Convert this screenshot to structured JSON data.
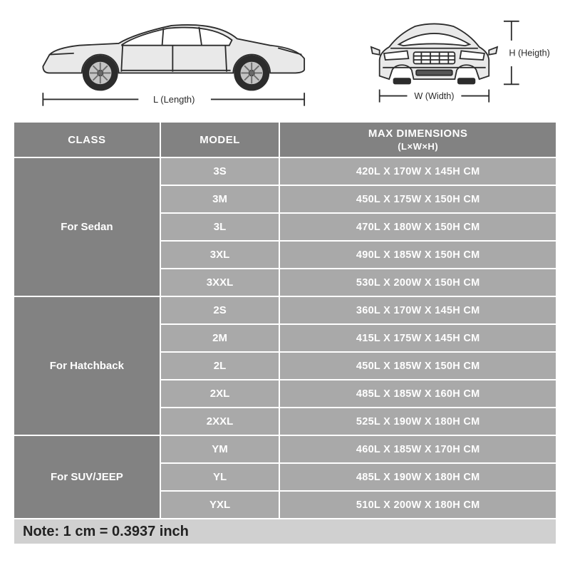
{
  "diagram": {
    "length_label": "L (Length)",
    "width_label": "W (Width)",
    "height_label": "H (Heigth)",
    "stroke_color": "#2c2c2c",
    "body_fill": "#e9e9e9",
    "wheel_fill": "#b8b8b8"
  },
  "table": {
    "header_bg": "#828282",
    "class_bg": "#828282",
    "data_bg": "#a9a9a9",
    "border_color": "#ffffff",
    "text_color": "#ffffff",
    "note_bg": "#d0d0d0",
    "note_text_color": "#222222",
    "columns": {
      "class": "CLASS",
      "model": "MODEL",
      "dimensions": "MAX DIMENSIONS",
      "dimensions_sub": "(L×W×H)"
    },
    "groups": [
      {
        "class": "For Sedan",
        "rows": [
          {
            "model": "3S",
            "dims": "420L X 170W X 145H CM"
          },
          {
            "model": "3M",
            "dims": "450L X 175W X 150H CM"
          },
          {
            "model": "3L",
            "dims": "470L X 180W X 150H CM"
          },
          {
            "model": "3XL",
            "dims": "490L X 185W X 150H CM"
          },
          {
            "model": "3XXL",
            "dims": "530L X 200W X 150H CM"
          }
        ]
      },
      {
        "class": "For Hatchback",
        "rows": [
          {
            "model": "2S",
            "dims": "360L X 170W X 145H CM"
          },
          {
            "model": "2M",
            "dims": "415L X 175W X 145H CM"
          },
          {
            "model": "2L",
            "dims": "450L X 185W X 150H CM"
          },
          {
            "model": "2XL",
            "dims": "485L X 185W X 160H CM"
          },
          {
            "model": "2XXL",
            "dims": "525L X 190W X 180H CM"
          }
        ]
      },
      {
        "class": "For SUV/JEEP",
        "rows": [
          {
            "model": "YM",
            "dims": "460L X 185W X 170H CM"
          },
          {
            "model": "YL",
            "dims": "485L X 190W X 180H CM"
          },
          {
            "model": "YXL",
            "dims": "510L X 200W X 180H CM"
          }
        ]
      }
    ],
    "note": "Note: 1 cm = 0.3937 inch"
  }
}
